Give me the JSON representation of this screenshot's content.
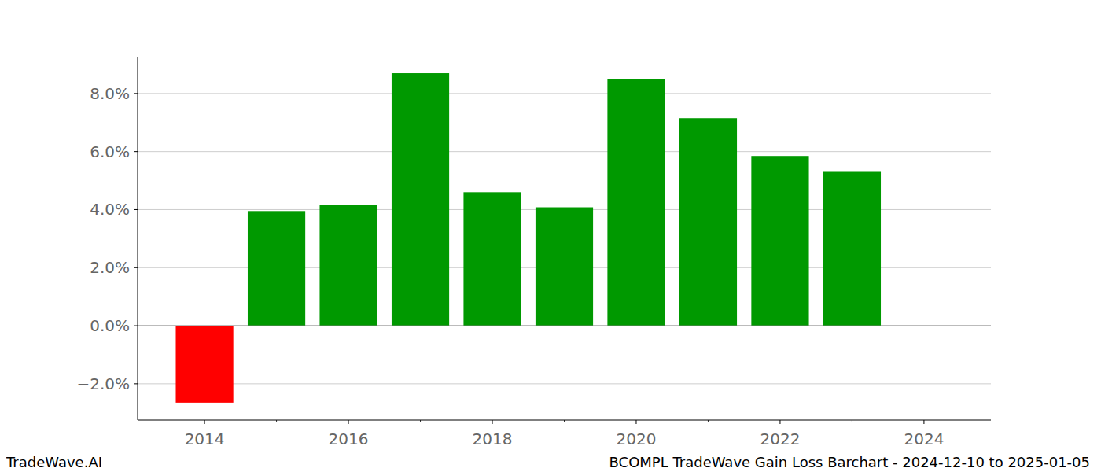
{
  "chart_data": {
    "type": "bar",
    "title": "BCOMPL TradeWave Gain Loss Barchart - 2024-12-10 to 2025-01-05",
    "watermark": "TradeWave.AI",
    "x": [
      2014,
      2015,
      2016,
      2017,
      2018,
      2019,
      2020,
      2021,
      2022,
      2023
    ],
    "values": [
      -2.65,
      3.95,
      4.15,
      8.7,
      4.6,
      4.08,
      8.5,
      7.15,
      5.85,
      5.3
    ],
    "colors": [
      "#ff0000",
      "#009900",
      "#009900",
      "#009900",
      "#009900",
      "#009900",
      "#009900",
      "#009900",
      "#009900",
      "#009900"
    ],
    "xlim": [
      2013.07,
      2024.93
    ],
    "xticks": [
      2014,
      2016,
      2018,
      2020,
      2022,
      2024
    ],
    "ylim": [
      -3.25,
      9.27
    ],
    "yticks": [
      {
        "value": -2,
        "label": "−2.0%"
      },
      {
        "value": 0,
        "label": "0.0%"
      },
      {
        "value": 2,
        "label": "2.0%"
      },
      {
        "value": 4,
        "label": "4.0%"
      },
      {
        "value": 6,
        "label": "6.0%"
      },
      {
        "value": 8,
        "label": "8.0%"
      }
    ],
    "grid": true
  }
}
